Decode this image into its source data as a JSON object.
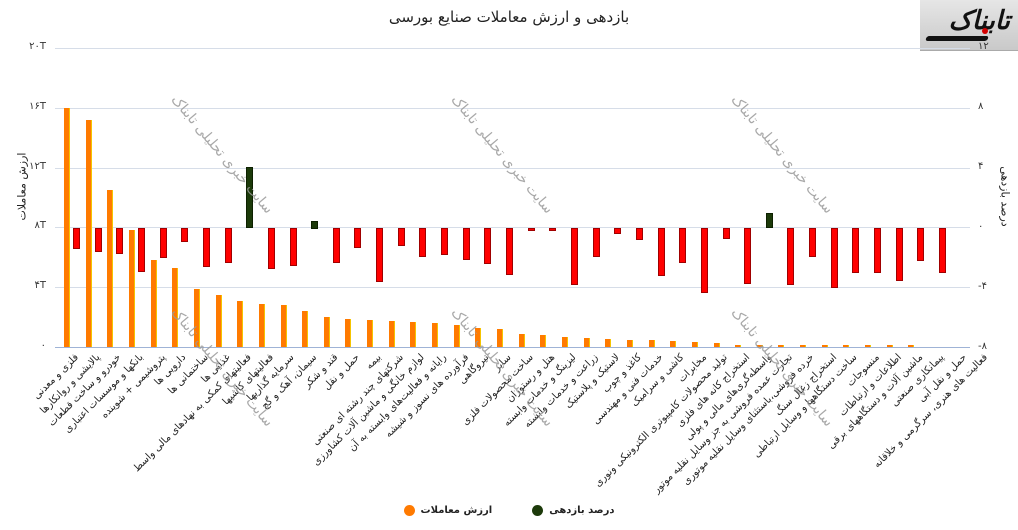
{
  "header": {
    "title": "بازدهی و ارزش معاملات صنایع بورسی",
    "logo_text": "تابناک"
  },
  "watermark": "سایت خبری تحلیلی تابناک",
  "legend": {
    "items": [
      {
        "label": "درصد بازدهی",
        "color": "#1c3a0a"
      },
      {
        "label": "ارزش معاملات",
        "color": "#ff7a00"
      }
    ]
  },
  "colors": {
    "value_bar": "#ff7a00",
    "return_negative": "#ff0000",
    "return_positive": "#1c3a0a",
    "grid": "#d6dde8"
  },
  "chart_data": {
    "type": "bar",
    "title": "بازدهی و ارزش معاملات صنایع بورسی",
    "ylabel_left": "ارزش معاملات",
    "ylabel_right": "درصد بازدهی",
    "y_left_ticks": [
      "۰",
      "۴T",
      "۸T",
      "۱۲T",
      "۱۶T",
      "۲۰T"
    ],
    "y_right_ticks": [
      "-۸",
      "-۴",
      "۰",
      "۴",
      "۸",
      "۱۲"
    ],
    "ylim_left": [
      0,
      20
    ],
    "ylim_right": [
      -8,
      12
    ],
    "grid": true,
    "legend_position": "bottom",
    "categories": [
      "فلزی و معدنی",
      "پالایشی و روانکارها",
      "خودرو و ساخت قطعات",
      "بانکها و موسسات اعتباری",
      "پتروشیمی + شوینده",
      "دارویی ها",
      "ساختمانی ها",
      "غذایی ها",
      "فعالیتهای کمکی به نهادهای مالی واسط",
      "فعالیتهای کاشیها",
      "سرمایه گذاریها",
      "سیمان، آهک و گچ",
      "قند و شکر",
      "حمل و نقل",
      "بیمه",
      "شرکتهای چند رشته ای صنعتی",
      "لوازم خانگی و ماشین آلات کشاورزی",
      "رایانه و فعالیت‌های وابسته به آن",
      "فرآورده های نسوز و شیشه",
      "نیروگاهی",
      "سایر",
      "ساخت محصولات فلزی",
      "هتل و رستوران",
      "لیزینگ و خدمات وابسته",
      "زراعت و خدمات وابسته",
      "لاستیک و پلاستیک",
      "کاغذ و چوب",
      "خدمات فنی و مهندسی",
      "کاشی و سرامیک",
      "مخابرات",
      "تولید محصولات کامپیوتری الکترونیکی ونوری",
      "استخراج کانه های فلزی",
      "واسطه‌گری‌های مالی و پولی",
      "تجارت عمده فروشی به جز وسایل نقلیه موتور",
      "خرده فروشی،باستثنای وسایل نقلیه موتوری",
      "استخراج زغال سنگ",
      "ساخت دستگاهها و وسایل ارتباطی",
      "منسوجات",
      "اطلاعات و ارتباطات",
      "ماشین آلات و دستگاههای برقی",
      "پیمانکاری صنعتی",
      "حمل و نقل آبی",
      "فعالیت های هنری، سرگرمی و خلاقانه"
    ],
    "series": [
      {
        "name": "ارزش معاملات",
        "axis": "left",
        "unit": "T",
        "values": [
          16.0,
          15.2,
          10.5,
          7.8,
          5.8,
          5.3,
          3.9,
          3.5,
          3.1,
          2.9,
          2.8,
          2.4,
          2.0,
          1.9,
          1.8,
          1.75,
          1.7,
          1.6,
          1.5,
          1.3,
          1.2,
          0.85,
          0.8,
          0.65,
          0.6,
          0.55,
          0.5,
          0.45,
          0.4,
          0.35,
          0.3,
          0.15,
          0.15,
          0.1,
          0.05,
          0.05,
          0.05,
          0.05,
          0.05,
          0.03,
          0.0,
          0.0,
          0.0
        ]
      },
      {
        "name": "درصد بازدهی",
        "axis": "right",
        "unit": "%",
        "values": [
          -1.4,
          -1.6,
          -1.7,
          -2.9,
          -2.0,
          -0.9,
          -2.6,
          -2.3,
          4.1,
          -2.7,
          -2.5,
          0.5,
          -2.3,
          -1.3,
          -3.6,
          -1.2,
          -1.9,
          -1.8,
          -2.1,
          -2.4,
          -3.1,
          -0.2,
          -0.2,
          -3.8,
          -1.9,
          -0.4,
          -0.8,
          -3.2,
          -2.3,
          -4.3,
          -0.7,
          -3.7,
          1.0,
          -3.8,
          -1.9,
          -4.0,
          -3.0,
          -3.0,
          -3.5,
          -2.2,
          -3.0,
          0,
          0
        ]
      }
    ]
  }
}
